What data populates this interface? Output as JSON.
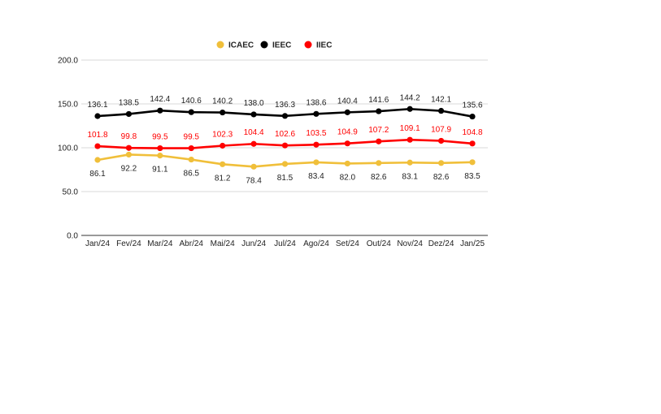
{
  "chart_data": {
    "type": "line",
    "categories": [
      "Jan/24",
      "Fev/24",
      "Mar/24",
      "Abr/24",
      "Mai/24",
      "Jun/24",
      "Jul/24",
      "Ago/24",
      "Set/24",
      "Out/24",
      "Nov/24",
      "Dez/24",
      "Jan/25"
    ],
    "ylim": [
      0,
      200
    ],
    "yticks": [
      "0.0",
      "50.0",
      "100.0",
      "150.0",
      "200.0"
    ],
    "grid": true,
    "legend_position": "top",
    "series": [
      {
        "name": "ICAEC",
        "color": "#f0bf3a",
        "label_color": "#222222",
        "label_side": "below",
        "values": [
          86.1,
          92.2,
          91.1,
          86.5,
          81.2,
          78.4,
          81.5,
          83.4,
          82.0,
          82.6,
          83.1,
          82.6,
          83.5
        ],
        "labels": [
          "86.1",
          "92.2",
          "91.1",
          "86.5",
          "81.2",
          "78.4",
          "81.5",
          "83.4",
          "82.0",
          "82.6",
          "83.1",
          "82.6",
          "83.5"
        ]
      },
      {
        "name": "IEEC",
        "color": "#000000",
        "label_color": "#222222",
        "label_side": "above",
        "values": [
          136.1,
          138.5,
          142.4,
          140.6,
          140.2,
          138.0,
          136.3,
          138.6,
          140.4,
          141.6,
          144.2,
          142.1,
          135.6
        ],
        "labels": [
          "136.1",
          "138.5",
          "142.4",
          "140.6",
          "140.2",
          "138.0",
          "136.3",
          "138.6",
          "140.4",
          "141.6",
          "144.2",
          "142.1",
          "135.6"
        ]
      },
      {
        "name": "IIEC",
        "color": "#ff0000",
        "label_color": "#ff0000",
        "label_side": "above",
        "values": [
          101.8,
          99.8,
          99.5,
          99.5,
          102.3,
          104.4,
          102.6,
          103.5,
          104.9,
          107.2,
          109.1,
          107.9,
          104.8
        ],
        "labels": [
          "101.8",
          "99.8",
          "99.5",
          "99.5",
          "102.3",
          "104.4",
          "102.6",
          "103.5",
          "104.9",
          "107.2",
          "109.1",
          "107.9",
          "104.8"
        ]
      }
    ]
  }
}
